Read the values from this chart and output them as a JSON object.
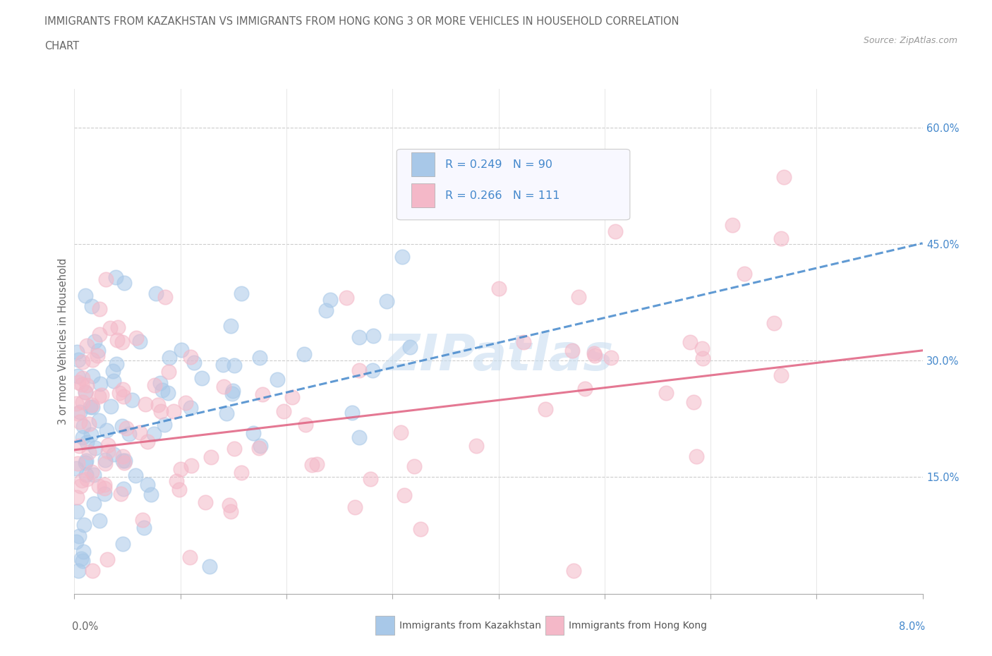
{
  "title_line1": "IMMIGRANTS FROM KAZAKHSTAN VS IMMIGRANTS FROM HONG KONG 3 OR MORE VEHICLES IN HOUSEHOLD CORRELATION",
  "title_line2": "CHART",
  "source": "Source: ZipAtlas.com",
  "ylabel": "3 or more Vehicles in Household",
  "ytick_labels": [
    "15.0%",
    "30.0%",
    "45.0%",
    "60.0%"
  ],
  "ytick_values": [
    0.15,
    0.3,
    0.45,
    0.6
  ],
  "xlim": [
    0.0,
    0.08
  ],
  "ylim": [
    0.0,
    0.65
  ],
  "legend_r1": "R = 0.249",
  "legend_n1": "N = 90",
  "legend_r2": "R = 0.266",
  "legend_n2": "N = 111",
  "color_kaz": "#a8c8e8",
  "color_hk": "#f4b8c8",
  "color_kaz_line": "#4488cc",
  "color_hk_line": "#e06080",
  "label_kaz": "Immigrants from Kazakhstan",
  "label_hk": "Immigrants from Hong Kong",
  "legend_text_color": "#4488cc",
  "legend_label_color": "#333333",
  "watermark": "ZIPatlas",
  "watermark_color": "#c8ddf0"
}
